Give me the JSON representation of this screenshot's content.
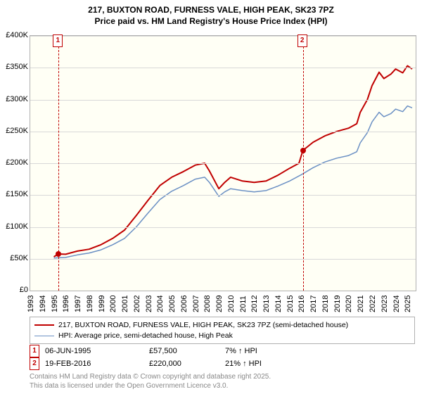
{
  "title_line1": "217, BUXTON ROAD, FURNESS VALE, HIGH PEAK, SK23 7PZ",
  "title_line2": "Price paid vs. HM Land Registry's House Price Index (HPI)",
  "chart": {
    "type": "line",
    "background_color": "#fffff5",
    "border_color": "#b0b0b0",
    "grid_color": "#d8d8d8",
    "x": {
      "min": 1993,
      "max": 2025.7,
      "ticks": [
        1993,
        1994,
        1995,
        1996,
        1997,
        1998,
        1999,
        2000,
        2001,
        2002,
        2003,
        2004,
        2005,
        2006,
        2007,
        2008,
        2009,
        2010,
        2011,
        2012,
        2013,
        2014,
        2015,
        2016,
        2017,
        2018,
        2019,
        2020,
        2021,
        2022,
        2023,
        2024,
        2025
      ]
    },
    "y": {
      "min": 0,
      "max": 400000,
      "tick_step": 50000,
      "tick_labels": [
        "£0",
        "£50K",
        "£100K",
        "£150K",
        "£200K",
        "£250K",
        "£300K",
        "£350K",
        "£400K"
      ]
    },
    "series": [
      {
        "name": "property",
        "label": "217, BUXTON ROAD, FURNESS VALE, HIGH PEAK, SK23 7PZ (semi-detached house)",
        "color": "#c00000",
        "line_width": 2,
        "points": [
          [
            1995.0,
            53000
          ],
          [
            1995.4,
            57500
          ],
          [
            1996,
            57000
          ],
          [
            1997,
            62000
          ],
          [
            1998,
            65000
          ],
          [
            1999,
            72000
          ],
          [
            2000,
            82000
          ],
          [
            2001,
            95000
          ],
          [
            2002,
            118000
          ],
          [
            2003,
            142000
          ],
          [
            2004,
            165000
          ],
          [
            2005,
            178000
          ],
          [
            2006,
            187000
          ],
          [
            2007,
            197000
          ],
          [
            2007.8,
            200000
          ],
          [
            2008.2,
            188000
          ],
          [
            2009,
            160000
          ],
          [
            2009.5,
            170000
          ],
          [
            2010,
            178000
          ],
          [
            2011,
            172000
          ],
          [
            2012,
            170000
          ],
          [
            2013,
            172000
          ],
          [
            2014,
            181000
          ],
          [
            2015,
            192000
          ],
          [
            2015.8,
            200000
          ],
          [
            2016.13,
            220000
          ],
          [
            2017,
            233000
          ],
          [
            2018,
            243000
          ],
          [
            2019,
            250000
          ],
          [
            2020,
            255000
          ],
          [
            2020.7,
            262000
          ],
          [
            2021,
            280000
          ],
          [
            2021.6,
            300000
          ],
          [
            2022,
            322000
          ],
          [
            2022.6,
            343000
          ],
          [
            2023,
            333000
          ],
          [
            2023.6,
            340000
          ],
          [
            2024,
            348000
          ],
          [
            2024.6,
            342000
          ],
          [
            2025,
            353000
          ],
          [
            2025.4,
            348000
          ]
        ]
      },
      {
        "name": "hpi",
        "label": "HPI: Average price, semi-detached house, High Peak",
        "color": "#6b90c4",
        "line_width": 1.5,
        "points": [
          [
            1995.0,
            51000
          ],
          [
            1996,
            52000
          ],
          [
            1997,
            56000
          ],
          [
            1998,
            59000
          ],
          [
            1999,
            64000
          ],
          [
            2000,
            72000
          ],
          [
            2001,
            82000
          ],
          [
            2002,
            100000
          ],
          [
            2003,
            122000
          ],
          [
            2004,
            143000
          ],
          [
            2005,
            156000
          ],
          [
            2006,
            165000
          ],
          [
            2007,
            175000
          ],
          [
            2007.8,
            178000
          ],
          [
            2008.2,
            170000
          ],
          [
            2009,
            148000
          ],
          [
            2009.5,
            155000
          ],
          [
            2010,
            160000
          ],
          [
            2011,
            157000
          ],
          [
            2012,
            155000
          ],
          [
            2013,
            157000
          ],
          [
            2014,
            164000
          ],
          [
            2015,
            172000
          ],
          [
            2016,
            182000
          ],
          [
            2017,
            193000
          ],
          [
            2018,
            202000
          ],
          [
            2019,
            208000
          ],
          [
            2020,
            212000
          ],
          [
            2020.7,
            218000
          ],
          [
            2021,
            232000
          ],
          [
            2021.6,
            248000
          ],
          [
            2022,
            265000
          ],
          [
            2022.6,
            280000
          ],
          [
            2023,
            273000
          ],
          [
            2023.6,
            278000
          ],
          [
            2024,
            285000
          ],
          [
            2024.6,
            281000
          ],
          [
            2025,
            290000
          ],
          [
            2025.4,
            287000
          ]
        ]
      }
    ],
    "markers": [
      {
        "id": "1",
        "x": 1995.4,
        "y": 57500
      },
      {
        "id": "2",
        "x": 2016.13,
        "y": 220000
      }
    ]
  },
  "legend": {
    "series0": "217, BUXTON ROAD, FURNESS VALE, HIGH PEAK, SK23 7PZ (semi-detached house)",
    "series1": "HPI: Average price, semi-detached house, High Peak"
  },
  "transactions": [
    {
      "marker": "1",
      "date": "06-JUN-1995",
      "price": "£57,500",
      "pct": "7% ↑ HPI"
    },
    {
      "marker": "2",
      "date": "19-FEB-2016",
      "price": "£220,000",
      "pct": "21% ↑ HPI"
    }
  ],
  "footer_line1": "Contains HM Land Registry data © Crown copyright and database right 2025.",
  "footer_line2": "This data is licensed under the Open Government Licence v3.0."
}
